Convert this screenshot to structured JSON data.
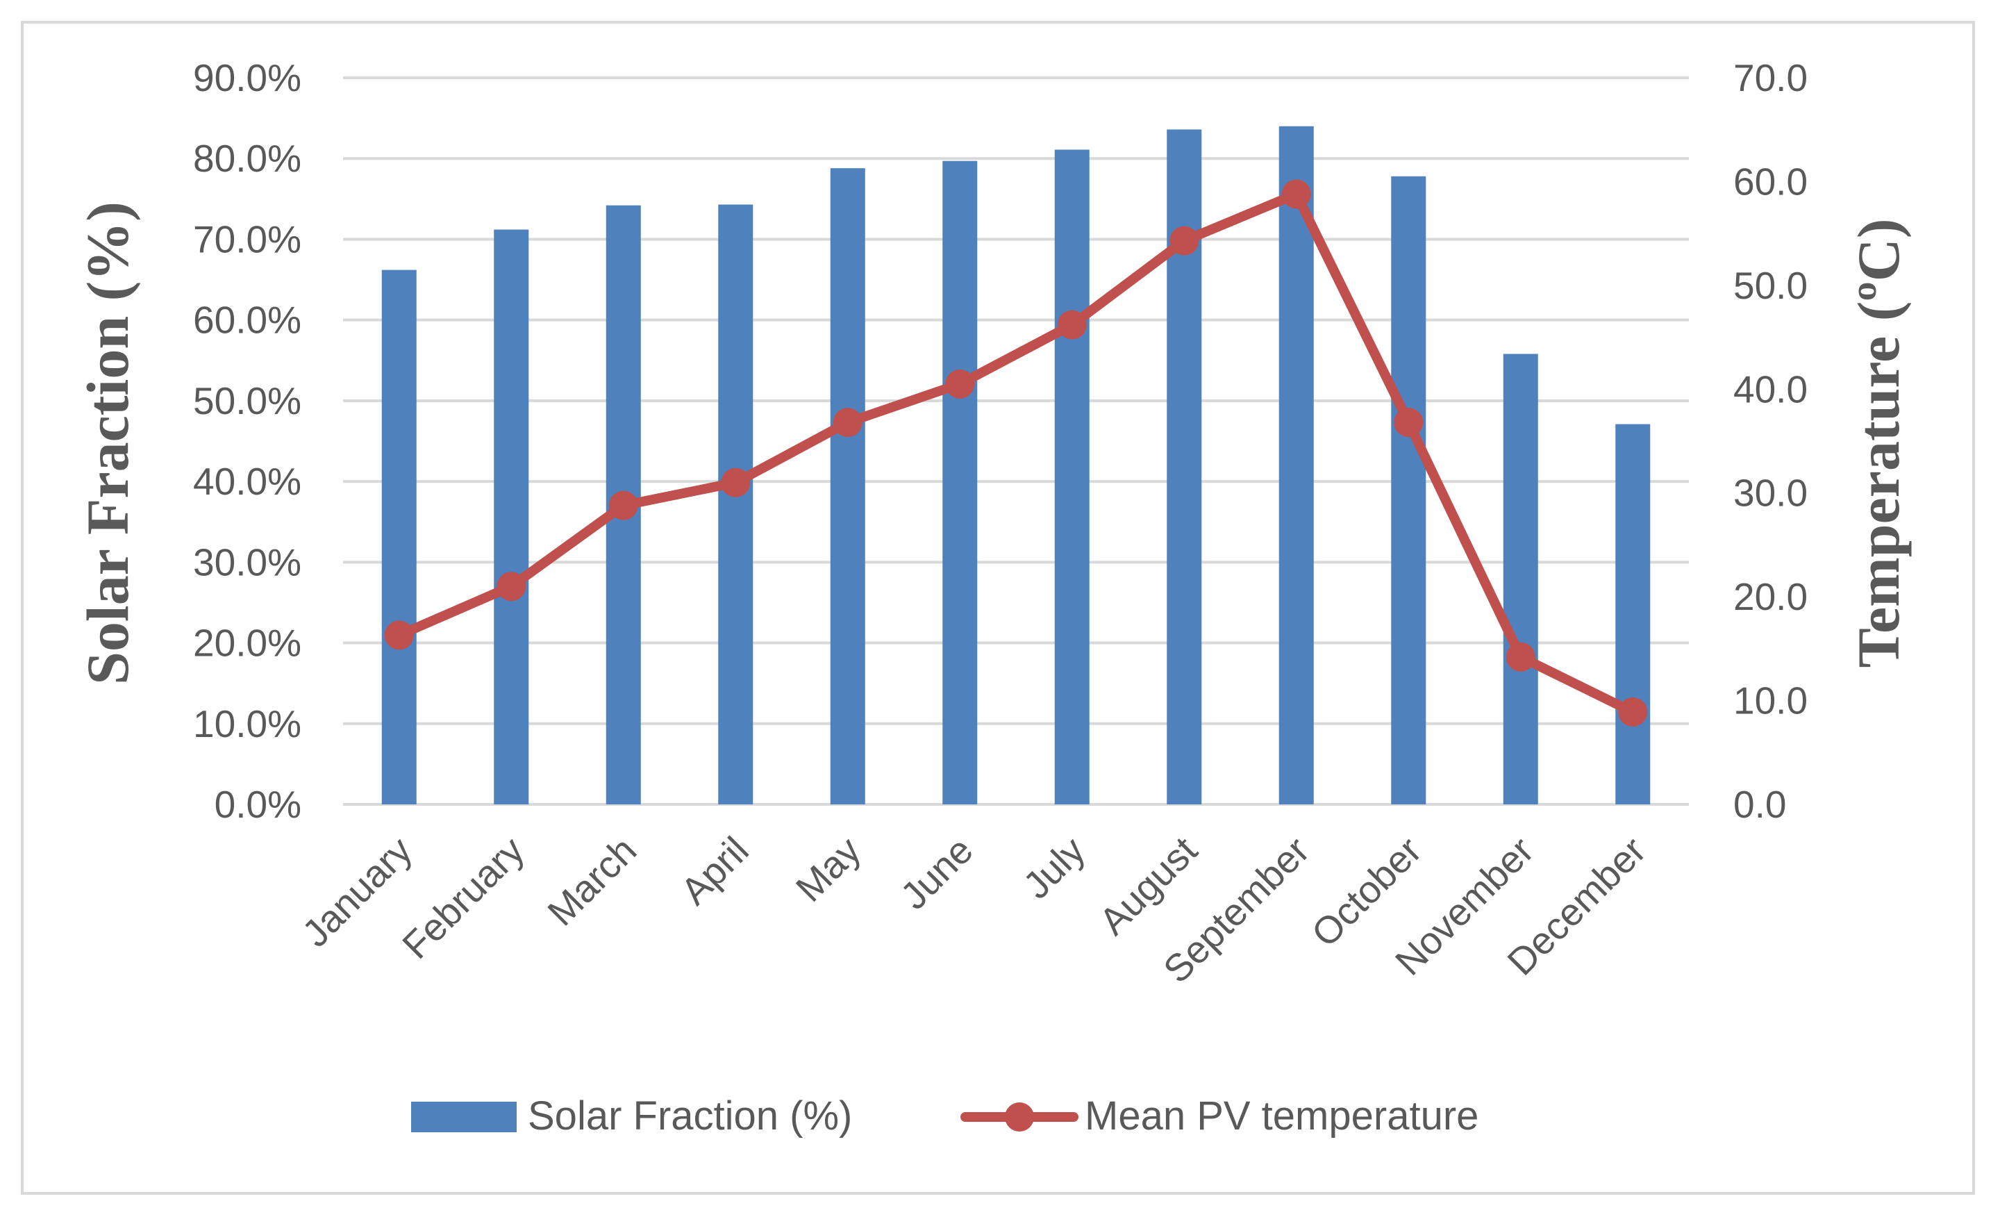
{
  "chart_data": {
    "type": "bar",
    "categories": [
      "January",
      "February",
      "March",
      "April",
      "May",
      "June",
      "July",
      "August",
      "September",
      "October",
      "November",
      "December"
    ],
    "series": [
      {
        "name": "Solar Fraction (%)",
        "type": "bar",
        "axis": "left",
        "color": "#4f81bd",
        "values": [
          66.2,
          71.2,
          74.2,
          74.3,
          78.8,
          79.7,
          81.1,
          83.6,
          84.0,
          77.8,
          55.8,
          47.1
        ]
      },
      {
        "name": "Mean PV temperature",
        "type": "line",
        "axis": "right",
        "color": "#c0504d",
        "values": [
          16.3,
          21.0,
          28.8,
          31.0,
          36.8,
          40.5,
          46.2,
          54.3,
          58.8,
          36.8,
          14.2,
          8.9
        ]
      }
    ],
    "y_left": {
      "label": "Solar Fraction (%)",
      "range": [
        0,
        90
      ],
      "ticks": [
        0,
        10,
        20,
        30,
        40,
        50,
        60,
        70,
        80,
        90
      ],
      "tick_labels": [
        "0.0%",
        "10.0%",
        "20.0%",
        "30.0%",
        "40.0%",
        "50.0%",
        "60.0%",
        "70.0%",
        "80.0%",
        "90.0%"
      ]
    },
    "y_right": {
      "label": "Temperature (ºC)",
      "range": [
        0,
        70
      ],
      "ticks": [
        0,
        10,
        20,
        30,
        40,
        50,
        60,
        70
      ],
      "tick_labels": [
        "0.0",
        "10.0",
        "20.0",
        "30.0",
        "40.0",
        "50.0",
        "60.0",
        "70.0"
      ]
    },
    "grid": true,
    "legend_position": "bottom",
    "legend": [
      "Solar Fraction (%)",
      "Mean PV temperature"
    ]
  }
}
